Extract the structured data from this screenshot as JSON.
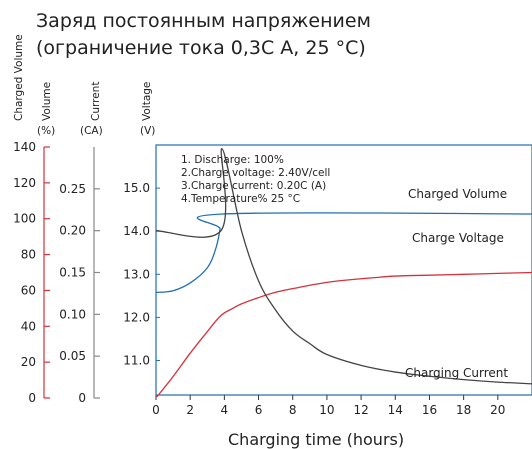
{
  "chart_data": {
    "type": "line",
    "title_line1": "Заряд постоянным напряжением",
    "title_line2": "(ограничение тока 0,3С А, 25 °С)",
    "xlabel": "Charging time (hours)",
    "x_ticks": [
      "0",
      "2",
      "4",
      "6",
      "8",
      "10",
      "12",
      "14",
      "16",
      "18",
      "20"
    ],
    "xlim": [
      0,
      22
    ],
    "axes": {
      "charged_volume": {
        "name": "Charged Volume",
        "unit": "(%)",
        "ticks": [
          "0",
          "20",
          "40",
          "60",
          "80",
          "100",
          "120",
          "140"
        ],
        "range": [
          0,
          140
        ],
        "color": "#d6303c"
      },
      "current": {
        "name": "Current",
        "unit": "(CA)",
        "ticks": [
          "0",
          "0.05",
          "0.10",
          "0.15",
          "0.20",
          "0.25"
        ],
        "range": [
          0,
          0.3
        ]
      },
      "voltage": {
        "name": "Voltage",
        "unit": "(V)",
        "ticks": [
          "11.0",
          "12.0",
          "13.0",
          "14.0",
          "15.0"
        ],
        "range": [
          10.2,
          16.0
        ],
        "color": "#1f6fb5"
      }
    },
    "notes": [
      "1. Discharge: 100%",
      "2.Charge voltage: 2.40V/cell",
      "3.Charge current: 0.20C (A)",
      "4.Temperature% 25 °C"
    ],
    "series": [
      {
        "name": "Charged Volume",
        "axis": "charged_volume",
        "color": "#d6303c",
        "x": [
          0,
          1,
          2,
          3,
          3.8,
          4.5,
          5,
          6,
          7,
          8,
          10,
          12,
          14,
          16,
          18,
          20,
          22
        ],
        "y": [
          0,
          12,
          25,
          37,
          46,
          50,
          52.5,
          56,
          59,
          61,
          64.5,
          66.5,
          68,
          68.5,
          69,
          69.5,
          70
        ]
      },
      {
        "name": "Charge Voltage",
        "axis": "voltage",
        "color": "#1f6fb5",
        "x": [
          0,
          1,
          2,
          3,
          3.5,
          3.75,
          3.9,
          22
        ],
        "y": [
          12.58,
          12.62,
          12.8,
          13.15,
          13.6,
          14.05,
          14.4,
          14.4
        ]
      },
      {
        "name": "Charging Current",
        "axis": "current",
        "color": "#444444",
        "x": [
          0,
          3.8,
          3.85,
          5,
          6,
          7,
          8,
          9,
          10,
          12,
          14,
          16,
          18,
          20,
          22
        ],
        "y": [
          0.2,
          0.2,
          0.298,
          0.2,
          0.14,
          0.105,
          0.08,
          0.065,
          0.052,
          0.039,
          0.031,
          0.026,
          0.022,
          0.019,
          0.017
        ]
      }
    ]
  }
}
